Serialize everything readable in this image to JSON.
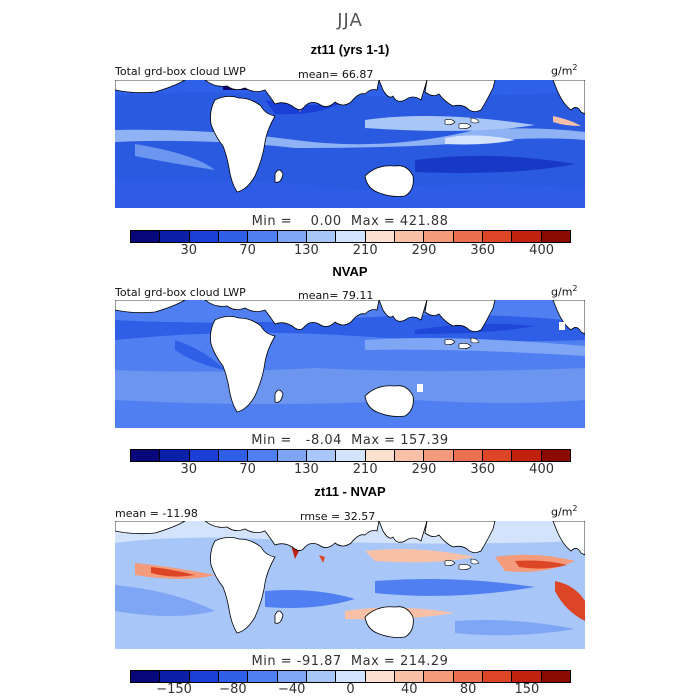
{
  "figure": {
    "title": "JJA",
    "units": "g/m",
    "units_exp": "2"
  },
  "panels": [
    {
      "title": "zt11 (yrs 1-1)",
      "header_left": "Total grd-box cloud LWP",
      "header_mid": "mean=   66.87",
      "minmax": "Min =    0.00  Max = 421.88",
      "colorbar": {
        "colors": [
          "#08087a",
          "#0b1fa8",
          "#1a3fd6",
          "#2f5fe6",
          "#4f7ff0",
          "#7fa6f5",
          "#a9c6f8",
          "#d3e3fb",
          "#fbe0d0",
          "#f8c0a6",
          "#f39b7a",
          "#ea704f",
          "#dd4527",
          "#c1220e",
          "#8b0a02"
        ],
        "ticks": [
          "30",
          "70",
          "130",
          "210",
          "290",
          "360",
          "400"
        ],
        "tick_cells": [
          2,
          4,
          6,
          8,
          10,
          12,
          14
        ]
      }
    },
    {
      "title": "NVAP",
      "header_left": "Total grd-box cloud LWP",
      "header_mid": "mean=   79.11",
      "minmax": "Min =   -8.04  Max = 157.39",
      "colorbar": {
        "colors": [
          "#08087a",
          "#0b1fa8",
          "#1a3fd6",
          "#2f5fe6",
          "#4f7ff0",
          "#7fa6f5",
          "#a9c6f8",
          "#d3e3fb",
          "#fbe0d0",
          "#f8c0a6",
          "#f39b7a",
          "#ea704f",
          "#dd4527",
          "#c1220e",
          "#8b0a02"
        ],
        "ticks": [
          "30",
          "70",
          "130",
          "210",
          "290",
          "360",
          "400"
        ],
        "tick_cells": [
          2,
          4,
          6,
          8,
          10,
          12,
          14
        ]
      }
    },
    {
      "title": "zt11 - NVAP",
      "header_left": "mean = -11.98",
      "header_mid": "rmse =   32.57",
      "minmax": "Min = -91.87  Max = 214.29",
      "colorbar": {
        "colors": [
          "#08087a",
          "#0b1fa8",
          "#1a3fd6",
          "#2f5fe6",
          "#4f7ff0",
          "#7fa6f5",
          "#a9c6f8",
          "#d3e3fb",
          "#fbe0d0",
          "#f8c0a6",
          "#f39b7a",
          "#ea704f",
          "#dd4527",
          "#c1220e",
          "#8b0a02"
        ],
        "ticks": [
          "−150",
          "−80",
          "−40",
          "0",
          "40",
          "80",
          "150"
        ],
        "tick_cells": [
          1.5,
          3.5,
          5.5,
          7.5,
          9.5,
          11.5,
          13.5
        ]
      }
    }
  ]
}
